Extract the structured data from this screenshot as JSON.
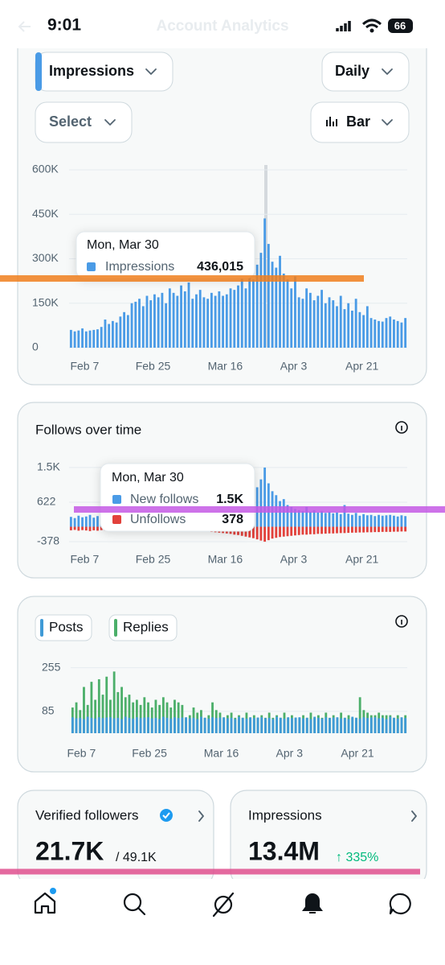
{
  "status_bar": {
    "time": "9:01",
    "battery": "66"
  },
  "header": {
    "title": "Account Analytics"
  },
  "controls": {
    "metric": "Impressions",
    "period": "Daily",
    "select": "Select",
    "chart_kind": "Bar"
  },
  "chart_data": [
    {
      "type": "bar",
      "series": [
        {
          "name": "Impressions",
          "color": "#4a9be6",
          "values": [
            60000,
            55000,
            58000,
            65000,
            55000,
            58000,
            60000,
            62000,
            70000,
            95000,
            80000,
            90000,
            85000,
            105000,
            120000,
            110000,
            150000,
            155000,
            165000,
            140000,
            175000,
            160000,
            180000,
            170000,
            185000,
            150000,
            200000,
            185000,
            175000,
            210000,
            190000,
            220000,
            165000,
            180000,
            195000,
            170000,
            165000,
            185000,
            175000,
            190000,
            175000,
            180000,
            200000,
            195000,
            210000,
            240000,
            200000,
            260000,
            230000,
            280000,
            320000,
            436015,
            350000,
            290000,
            270000,
            310000,
            250000,
            230000,
            200000,
            240000,
            170000,
            165000,
            200000,
            185000,
            160000,
            175000,
            195000,
            150000,
            170000,
            160000,
            140000,
            175000,
            130000,
            150000,
            125000,
            165000,
            120000,
            110000,
            140000,
            100000,
            95000,
            90000,
            88000,
            100000,
            105000,
            95000,
            90000,
            85000,
            100000
          ]
        }
      ],
      "xticks": [
        {
          "value": 0,
          "label": "Feb 7"
        },
        {
          "value": 18,
          "label": "Feb 25"
        },
        {
          "value": 37,
          "label": "Mar 16"
        },
        {
          "value": 55,
          "label": "Apr 3"
        },
        {
          "value": 73,
          "label": "Apr 21"
        }
      ],
      "ylim": [
        0,
        600000
      ],
      "yticks": [
        0,
        {
          "value": 150000,
          "label": "150K"
        },
        {
          "value": 300000,
          "label": "300K"
        },
        {
          "value": 450000,
          "label": "450K"
        },
        {
          "value": 600000,
          "label": "600K"
        }
      ],
      "grid": true,
      "tooltip": {
        "title": "Mon, Mar 30",
        "items": [
          "436,015"
        ]
      }
    },
    {
      "type": "bar",
      "title": "Follows over time",
      "series": [
        {
          "name": "New follows",
          "color": "#4a9be6",
          "values": [
            250,
            220,
            280,
            240,
            260,
            300,
            230,
            270,
            250,
            290,
            240,
            260,
            280,
            300,
            250,
            270,
            310,
            260,
            290,
            240,
            280,
            300,
            260,
            250,
            320,
            280,
            270,
            300,
            260,
            290,
            310,
            280,
            300,
            270,
            320,
            290,
            330,
            300,
            280,
            310,
            350,
            320,
            380,
            400,
            450,
            500,
            550,
            650,
            800,
            1000,
            1200,
            1500,
            1100,
            900,
            800,
            650,
            700,
            550,
            500,
            450,
            420,
            400,
            500,
            380,
            420,
            360,
            400,
            350,
            380,
            340,
            360,
            320,
            550,
            330,
            300,
            350,
            280,
            320,
            290,
            300,
            270,
            300,
            280,
            290,
            300,
            280,
            260,
            290,
            270
          ]
        },
        {
          "name": "Unfollows",
          "color": "#e2413b",
          "values": [
            -90,
            -80,
            -100,
            -85,
            -95,
            -110,
            -90,
            -100,
            -85,
            -95,
            -100,
            -90,
            -95,
            -105,
            -90,
            -100,
            -110,
            -95,
            -100,
            -90,
            -95,
            -100,
            -110,
            -90,
            -105,
            -100,
            -95,
            -110,
            -100,
            -105,
            -110,
            -100,
            -120,
            -105,
            -115,
            -110,
            -120,
            -130,
            -140,
            -150,
            -160,
            -170,
            -180,
            -200,
            -210,
            -230,
            -250,
            -270,
            -290,
            -320,
            -350,
            -378,
            -340,
            -300,
            -280,
            -260,
            -250,
            -240,
            -230,
            -220,
            -210,
            -200,
            -200,
            -190,
            -190,
            -180,
            -180,
            -175,
            -170,
            -170,
            -165,
            -160,
            -160,
            -155,
            -150,
            -150,
            -145,
            -145,
            -140,
            -140,
            -135,
            -135,
            -130,
            -130,
            -130,
            -125,
            -125,
            -120,
            -120
          ]
        }
      ],
      "xticks": [
        {
          "value": 0,
          "label": "Feb 7"
        },
        {
          "value": 18,
          "label": "Feb 25"
        },
        {
          "value": 37,
          "label": "Mar 16"
        },
        {
          "value": 55,
          "label": "Apr 3"
        },
        {
          "value": 73,
          "label": "Apr 21"
        }
      ],
      "ylim": [
        -500,
        1600
      ],
      "yticks": [
        -378,
        622,
        {
          "value": 1500,
          "label": "1.5K"
        }
      ],
      "grid": true,
      "tooltip": {
        "title": "Mon, Mar 30",
        "items": [
          "1.5K",
          "378"
        ]
      }
    },
    {
      "type": "bar",
      "series": [
        {
          "name": "Posts",
          "color": "#3f9ad6",
          "values": [
            62,
            58,
            60,
            55,
            64,
            60,
            57,
            62,
            59,
            61,
            62,
            58,
            60,
            55,
            64,
            60,
            57,
            62,
            59,
            61,
            62,
            58,
            60,
            55,
            64,
            60,
            57,
            62,
            59,
            61,
            62,
            58,
            60,
            55,
            64,
            60,
            57,
            62,
            59,
            61,
            62,
            58,
            60,
            55,
            64,
            60,
            57,
            62,
            59,
            61,
            62,
            58,
            60,
            55,
            64,
            60,
            57,
            62,
            59,
            61,
            62,
            58,
            60,
            55,
            64,
            60,
            57,
            62,
            59,
            61,
            62,
            58,
            60,
            55,
            64,
            60,
            57,
            62,
            59,
            61,
            62,
            58,
            60,
            55,
            64,
            60,
            57,
            62,
            59
          ]
        },
        {
          "name": "Replies",
          "color": "#4caf6a",
          "values": [
            100,
            120,
            90,
            180,
            110,
            200,
            130,
            210,
            150,
            220,
            130,
            240,
            160,
            180,
            140,
            150,
            120,
            130,
            110,
            140,
            120,
            100,
            130,
            110,
            140,
            120,
            100,
            130,
            120,
            110,
            60,
            70,
            100,
            80,
            90,
            60,
            70,
            120,
            90,
            80,
            60,
            70,
            80,
            60,
            70,
            60,
            80,
            60,
            70,
            60,
            70,
            60,
            80,
            60,
            70,
            60,
            80,
            60,
            70,
            60,
            60,
            70,
            60,
            80,
            60,
            70,
            60,
            80,
            60,
            70,
            60,
            80,
            60,
            70,
            60,
            60,
            140,
            90,
            80,
            70,
            70,
            80,
            70,
            70,
            70,
            60,
            70,
            60,
            70
          ]
        }
      ],
      "xticks": [
        {
          "value": 0,
          "label": "Feb 7"
        },
        {
          "value": 18,
          "label": "Feb 25"
        },
        {
          "value": 37,
          "label": "Mar 16"
        },
        {
          "value": 55,
          "label": "Apr 3"
        },
        {
          "value": 73,
          "label": "Apr 21"
        }
      ],
      "ylim": [
        0,
        285
      ],
      "yticks": [
        85,
        255
      ],
      "grid": true
    }
  ],
  "cards": [
    {
      "title": "Verified followers",
      "value": "21.7K",
      "total": "/ 49.1K"
    },
    {
      "title": "Impressions",
      "value": "13.4M",
      "change": "↑ 335%"
    }
  ]
}
